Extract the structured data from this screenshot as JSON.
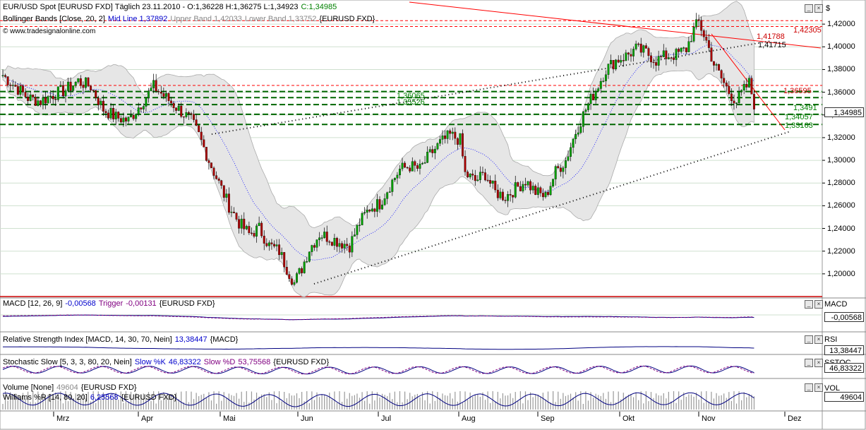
{
  "colors": {
    "up_candle": "#00a000",
    "down_candle": "#aa0000",
    "band_fill": "#e6e6e6",
    "band_line": "#aaaaaa",
    "mid_line": "#0000ff",
    "resistance": "#ff0000",
    "support": "#006600",
    "trend_dotted": "#000000",
    "indicator_main": "#000080",
    "indicator_signal": "#800080",
    "volume": "#999999"
  },
  "header": {
    "title": "EUR/USD Spot [EURUSD FXD]  Täglich 23.11.2010 - O:1,36228 H:1,36275 L:1,34923",
    "close": "C:1,34985",
    "bb_label": "Bollinger Bands [Close, 20, 2]",
    "bb_mid": "Mid Line 1,37892",
    "bb_upper": "Upper Band 1,42033",
    "bb_lower": "Lower Band 1,33752",
    "bb_symbol": "{EURUSD FXD}",
    "copyright": "© www.tradesignalonline.com"
  },
  "right_axis": {
    "currency_label": "$",
    "price_box": "1,34985",
    "ticks": [
      "1,42000",
      "1,40000",
      "1,38000",
      "1,36000",
      "1,34000",
      "1,32000",
      "1,30000",
      "1,28000",
      "1,26000",
      "1,24000",
      "1,22000",
      "1,20000"
    ]
  },
  "levels": {
    "red_high": "1,42305",
    "red_mid": "1,41788",
    "black_mid": "1,41715",
    "red_low": "1,36595",
    "green_1": "1,36065",
    "green_2": "1,35526",
    "green_3": "1,3491",
    "green_4": "1,34057",
    "green_5": "1,33163"
  },
  "panels": {
    "macd": {
      "label": "MACD [12, 26, 9]",
      "value": "-0,00568",
      "trigger_label": "Trigger",
      "trigger_value": "-0,00131",
      "symbol": "{EURUSD FXD}",
      "axis_label": "MACD",
      "axis_value": "-0,00568"
    },
    "rsi": {
      "label": "Relative Strength Index [MACD, 14, 30, 70, Nein]",
      "value": "13,38447",
      "symbol": "{MACD}",
      "axis_label": "RSI",
      "axis_value": "13,38447"
    },
    "stoch": {
      "label": "Stochastic Slow [5, 3, 3, 80, 20, Nein]",
      "k_label": "Slow %K",
      "k_value": "46,83322",
      "d_label": "Slow %D",
      "d_value": "53,75568",
      "symbol": "{EURUSD FXD}",
      "axis_label": "SSTOC",
      "axis_value": "46,83322"
    },
    "volume": {
      "label": "Volume [None]",
      "value": "49604",
      "symbol": "{EURUSD FXD}",
      "will_label": "Williams %R [14, 80, 20]",
      "will_value": "6,25568",
      "will_symbol": "{EURUSD FXD}",
      "axis_label": "VOL",
      "axis_value": "49604"
    }
  },
  "months": [
    "Mrz",
    "Apr",
    "Mai",
    "Jun",
    "Jul",
    "Aug",
    "Sep",
    "Okt",
    "Nov",
    "Dez"
  ],
  "chart_data": {
    "type": "candlestick",
    "title": "EUR/USD Spot [EURUSD FXD]",
    "ylim": [
      1.18,
      1.44
    ],
    "x_months": [
      "Mrz",
      "Apr",
      "Mai",
      "Jun",
      "Jul",
      "Aug",
      "Sep",
      "Okt",
      "Nov",
      "Dez"
    ],
    "close_path": [
      [
        0,
        1.375
      ],
      [
        5,
        1.365
      ],
      [
        10,
        1.355
      ],
      [
        15,
        1.352
      ],
      [
        20,
        1.358
      ],
      [
        25,
        1.362
      ],
      [
        30,
        1.37
      ],
      [
        35,
        1.365
      ],
      [
        40,
        1.345
      ],
      [
        45,
        1.338
      ],
      [
        50,
        1.335
      ],
      [
        55,
        1.35
      ],
      [
        60,
        1.365
      ],
      [
        65,
        1.355
      ],
      [
        70,
        1.345
      ],
      [
        75,
        1.335
      ],
      [
        78,
        1.322
      ],
      [
        82,
        1.3
      ],
      [
        86,
        1.28
      ],
      [
        90,
        1.26
      ],
      [
        94,
        1.245
      ],
      [
        98,
        1.235
      ],
      [
        102,
        1.24
      ],
      [
        106,
        1.225
      ],
      [
        110,
        1.22
      ],
      [
        113,
        1.205
      ],
      [
        116,
        1.192
      ],
      [
        119,
        1.205
      ],
      [
        122,
        1.222
      ],
      [
        126,
        1.235
      ],
      [
        130,
        1.232
      ],
      [
        134,
        1.228
      ],
      [
        138,
        1.225
      ],
      [
        142,
        1.245
      ],
      [
        146,
        1.258
      ],
      [
        150,
        1.262
      ],
      [
        154,
        1.278
      ],
      [
        158,
        1.292
      ],
      [
        162,
        1.295
      ],
      [
        166,
        1.292
      ],
      [
        170,
        1.305
      ],
      [
        174,
        1.315
      ],
      [
        178,
        1.322
      ],
      [
        182,
        1.318
      ],
      [
        184,
        1.288
      ],
      [
        188,
        1.282
      ],
      [
        192,
        1.288
      ],
      [
        196,
        1.272
      ],
      [
        200,
        1.268
      ],
      [
        204,
        1.275
      ],
      [
        208,
        1.282
      ],
      [
        212,
        1.272
      ],
      [
        216,
        1.268
      ],
      [
        220,
        1.29
      ],
      [
        224,
        1.3
      ],
      [
        228,
        1.325
      ],
      [
        232,
        1.345
      ],
      [
        236,
        1.362
      ],
      [
        240,
        1.38
      ],
      [
        244,
        1.388
      ],
      [
        248,
        1.392
      ],
      [
        252,
        1.398
      ],
      [
        256,
        1.395
      ],
      [
        260,
        1.388
      ],
      [
        264,
        1.392
      ],
      [
        268,
        1.393
      ],
      [
        272,
        1.398
      ],
      [
        275,
        1.415
      ],
      [
        277,
        1.422
      ],
      [
        280,
        1.405
      ],
      [
        283,
        1.385
      ],
      [
        286,
        1.372
      ],
      [
        289,
        1.36
      ],
      [
        292,
        1.352
      ],
      [
        295,
        1.362
      ],
      [
        297,
        1.368
      ],
      [
        299,
        1.35
      ]
    ],
    "bands": {
      "upper_note": "Upper Band 1,42033",
      "mid_note": "Mid Line 1,37892",
      "lower_note": "Lower Band 1,33752"
    },
    "horizontal_levels": [
      1.42305,
      1.41788,
      1.36595,
      1.36065,
      1.35526,
      1.3491,
      1.34057,
      1.33163
    ]
  }
}
